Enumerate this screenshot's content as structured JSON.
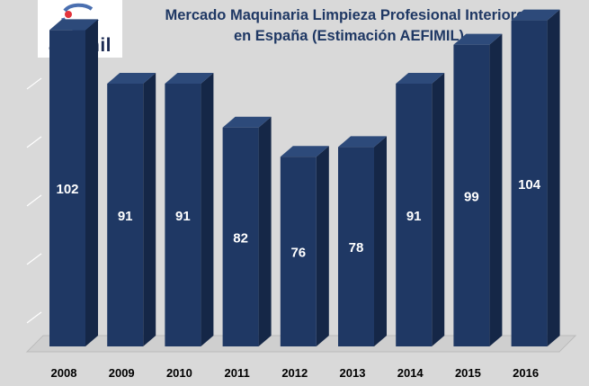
{
  "logo": {
    "text": "aefimil",
    "accent_color": "#e3343c"
  },
  "chart_data": {
    "type": "bar",
    "title_lines": [
      "Mercado Maquinaria Limpieza Profesional Interiores",
      "en España (Estimación AEFIMIL)"
    ],
    "categories": [
      "2008",
      "2009",
      "2010",
      "2011",
      "2012",
      "2013",
      "2014",
      "2015",
      "2016"
    ],
    "values": [
      102,
      91,
      91,
      82,
      76,
      78,
      91,
      99,
      104
    ],
    "xlabel": "",
    "ylabel": "",
    "ylim": [
      50,
      110
    ],
    "grid": true,
    "data_labels": true,
    "colors": {
      "bar_front": "#1f3864",
      "bar_side": "#152747",
      "bar_top": "#2d4a7a",
      "background": "#d9d9d9",
      "label": "#ffffff"
    }
  }
}
